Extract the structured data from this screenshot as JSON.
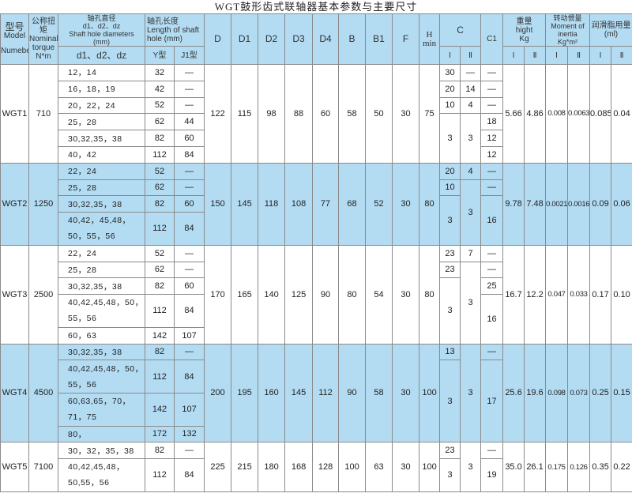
{
  "title": "WGT鼓形齿式联轴器基本参数与主要尺寸",
  "header": {
    "model_cn": "型号",
    "model_en": "Model",
    "model_en2": "Numeber",
    "torque_cn": "公称扭矩",
    "torque_en": "Nominal torque",
    "torque_unit": "N*m",
    "bore_cn": "轴孔直径",
    "bore_sym": "d1、d2、dz",
    "bore_en": "Shaft hole diameters",
    "bore_unit": "(mm)",
    "bore_sub": "d1、d2、dz",
    "length_cn": "轴孔长度",
    "length_en": "Length of shaft hole (mm)",
    "length_y": "Y型",
    "length_j": "J1型",
    "D": "D",
    "D1": "D1",
    "D2": "D2",
    "D3": "D3",
    "D4": "D4",
    "B": "B",
    "B1": "B1",
    "F": "F",
    "H": "H min",
    "C": "C",
    "C_I": "I",
    "C_II": "Ⅱ",
    "C1": "C1",
    "weight_cn": "重量",
    "weight_en": "hight",
    "weight_unit": "Kg",
    "weight_I": "I",
    "weight_II": "Ⅱ",
    "inertia_cn": "转动惯量",
    "inertia_en": "Moment of inertia",
    "inertia_unit": "Kg*m²",
    "inertia_I": "I",
    "inertia_II": "Ⅱ",
    "grease_cn": "润滑脂用量",
    "grease_unit": "(ml)",
    "grease_I": "I",
    "grease_II": "Ⅱ"
  },
  "row_colors": {
    "white": "#ffffff",
    "blue": "#b3dcf3"
  },
  "groups": [
    {
      "model": "WGT1",
      "torque": "710",
      "bores": [
        [
          "12，14",
          "32",
          "—"
        ],
        [
          "16，18，19",
          "42",
          "—"
        ],
        [
          "20，22，24",
          "52",
          "—"
        ],
        [
          "25，28",
          "62",
          "44"
        ],
        [
          "30,32,35，38",
          "82",
          "60"
        ],
        [
          "40，42",
          "112",
          "84"
        ]
      ],
      "D": "122",
      "D1": "115",
      "D2": "98",
      "D3": "88",
      "D4": "60",
      "B": "58",
      "B1": "50",
      "F": "30",
      "H": "75",
      "cI": [
        "30",
        "20",
        "10",
        "3"
      ],
      "cII": [
        "—",
        "14",
        "4",
        "3"
      ],
      "c1": [
        "—",
        "—",
        "—",
        "18",
        "12",
        "12"
      ],
      "w1": "5.66",
      "w2": "4.86",
      "i1": "0.008",
      "i2": "0.0063",
      "g1": "0.085",
      "g2": "0.04"
    },
    {
      "model": "WGT2",
      "torque": "1250",
      "bores": [
        [
          "22，24",
          "52",
          "—"
        ],
        [
          "25，28",
          "62",
          "—"
        ],
        [
          "30,32,35，38",
          "82",
          "60"
        ],
        [
          "40,42，45,48，50，55，56",
          "112",
          "84"
        ]
      ],
      "D": "150",
      "D1": "145",
      "D2": "118",
      "D3": "108",
      "D4": "77",
      "B": "68",
      "B1": "52",
      "F": "30",
      "H": "80",
      "cI": [
        "20",
        "10",
        "3"
      ],
      "cII": [
        "4",
        "3"
      ],
      "c1": [
        "—",
        "—",
        "16"
      ],
      "w1": "9.78",
      "w2": "7.48",
      "i1": "0.0021",
      "i2": "0.0016",
      "g1": "0.09",
      "g2": "0.06"
    },
    {
      "model": "WGT3",
      "torque": "2500",
      "bores": [
        [
          "22，24",
          "52",
          "—"
        ],
        [
          "25，28",
          "62",
          "—"
        ],
        [
          "30,32,35，38",
          "82",
          "60"
        ],
        [
          "40,42,45,48，50，55，56",
          "112",
          "84"
        ],
        [
          "60，63",
          "142",
          "107"
        ]
      ],
      "D": "170",
      "D1": "165",
      "D2": "140",
      "D3": "125",
      "D4": "90",
      "B": "80",
      "B1": "54",
      "F": "30",
      "H": "80",
      "cI": [
        "23",
        "23",
        "3"
      ],
      "cII": [
        "7",
        "3"
      ],
      "c1": [
        "—",
        "—",
        "25",
        "16"
      ],
      "w1": "16.7",
      "w2": "12.2",
      "i1": "0.047",
      "i2": "0.033",
      "g1": "0.17",
      "g2": "0.10"
    },
    {
      "model": "WGT4",
      "torque": "4500",
      "bores": [
        [
          "30,32,35，38",
          "82",
          "—"
        ],
        [
          "40,42,45,48，50，55，56",
          "112",
          "84"
        ],
        [
          "60,63,65，70，71，75",
          "142",
          "107"
        ],
        [
          "80，",
          "172",
          "132"
        ]
      ],
      "D": "200",
      "D1": "195",
      "D2": "160",
      "D3": "145",
      "D4": "112",
      "B": "90",
      "B1": "58",
      "F": "30",
      "H": "100",
      "cI": [
        "13",
        "3"
      ],
      "cII": [
        "3"
      ],
      "c1": [
        "—",
        "17"
      ],
      "w1": "25.6",
      "w2": "19.6",
      "i1": "0.098",
      "i2": "0.073",
      "g1": "0.25",
      "g2": "0.15"
    },
    {
      "model": "WGT5",
      "torque": "7100",
      "bores": [
        [
          "30，32，35，38",
          "82",
          "—"
        ],
        [
          "40,42,45,48，50,55，56",
          "112",
          "84"
        ]
      ],
      "D": "225",
      "D1": "215",
      "D2": "180",
      "D3": "168",
      "D4": "128",
      "B": "100",
      "B1": "63",
      "F": "30",
      "H": "100",
      "cI": [
        "23",
        "3"
      ],
      "cII": [
        "3"
      ],
      "c1": [
        "—",
        "19"
      ],
      "w1": "35.0",
      "w2": "26.1",
      "i1": "0.175",
      "i2": "0.126",
      "g1": "0.35",
      "g2": "0.22"
    }
  ]
}
